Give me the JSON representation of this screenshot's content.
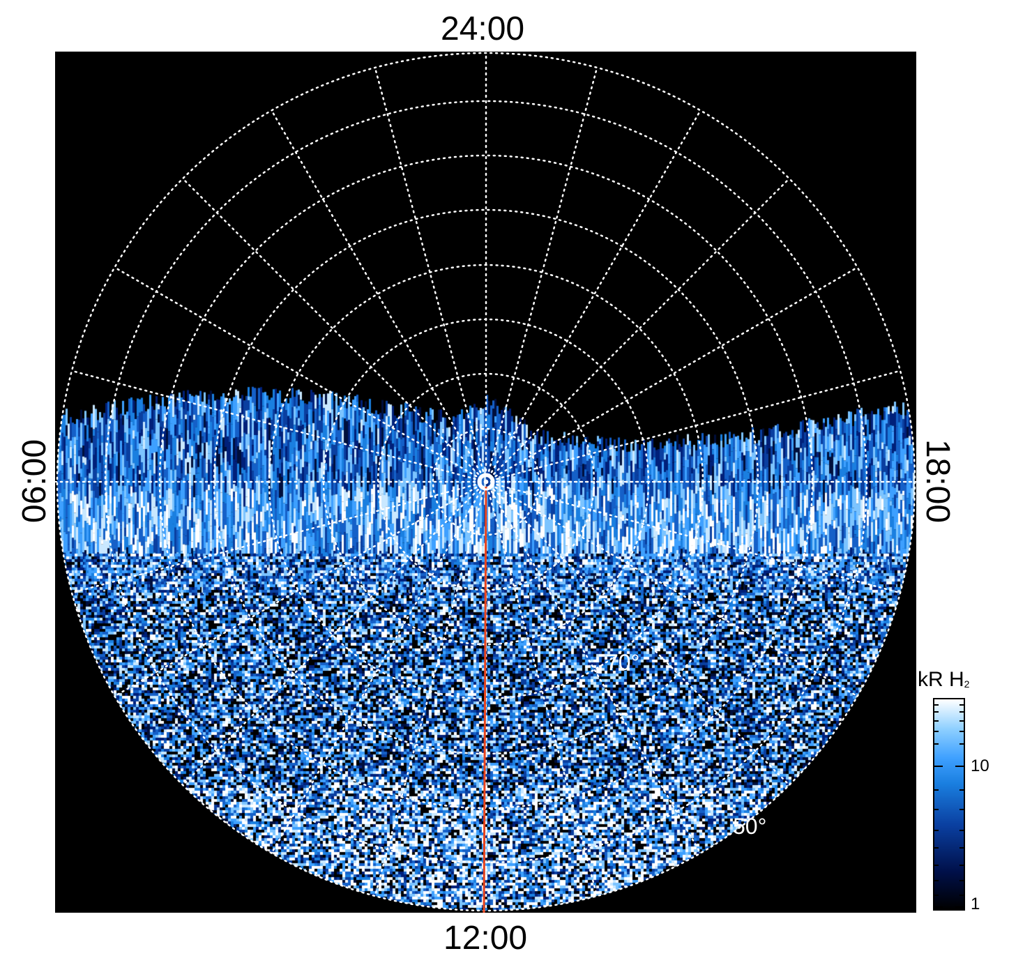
{
  "labels": {
    "top": "24:00",
    "bottom": "12:00",
    "left": "06:00",
    "right": "18:00"
  },
  "latitude_labels": {
    "lat70": "70°",
    "lat50": "50°"
  },
  "colorbar": {
    "title_main": "kR H",
    "title_sub": "2",
    "ticks": [
      "10",
      "1"
    ]
  },
  "colors": {
    "background": "#000000",
    "grid": "#ffffff",
    "meridian_line": "#e8431c",
    "aurora_low": "#00104a",
    "aurora_mid": "#1a7fe0",
    "aurora_high": "#ffffff"
  }
}
